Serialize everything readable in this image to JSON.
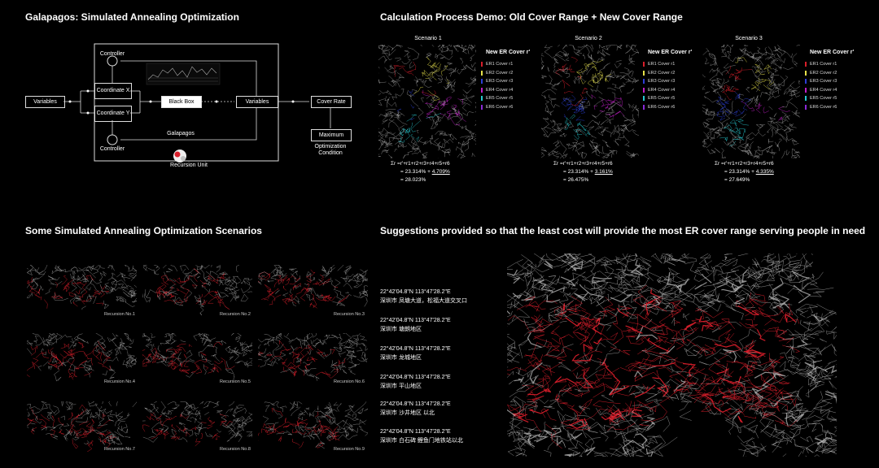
{
  "sections": {
    "galapagos_title": "Galapagos: Simulated Annealing Optimization",
    "calc_title": "Calculation Process Demo: Old Cover Range + New Cover Range",
    "scenarios_title": "Some Simulated Annealing Optimization Scenarios",
    "suggestions_title": "Suggestions provided so that the least cost will provide the most ER cover range serving people in need"
  },
  "diagram": {
    "variables_left": "Variables",
    "controller_top": "Controller",
    "coordinate_x": "Coordinate X",
    "coordinate_y": "Coordinate Y",
    "controller_bottom": "Controller",
    "black_box": "Black Box",
    "galapagos": "Galapagos",
    "variables_right": "Variables",
    "cover_rate": "Cover Rate",
    "maximum": "Maximum",
    "optimization_condition": "Optimization Condition",
    "recursion_unit": "Recursion Unit"
  },
  "scenarios": [
    {
      "title": "Scenario 1",
      "legend_title": "New ER Cover r'",
      "added": "4.709%",
      "total": "= 28.023%"
    },
    {
      "title": "Scenario 2",
      "legend_title": "New ER Cover r'",
      "added": "3.161%",
      "total": "= 26.475%"
    },
    {
      "title": "Scenario 3",
      "legend_title": "New ER Cover r'",
      "added": "4.335%",
      "total": "= 27.649%"
    }
  ],
  "legend_items": [
    "ER1 Cover r1",
    "ER2 Cover r2",
    "ER3 Cover r3",
    "ER4 Cover r4",
    "ER5 Cover r5",
    "ER6 Cover r6"
  ],
  "legend_colors": [
    "#d81e2a",
    "#e6e14a",
    "#2d3fd6",
    "#c21ec8",
    "#27c9d0",
    "#8a2ad8"
  ],
  "formula_sum": "Σr =r'+r1+r2+r3+r4+r5+r6",
  "formula_base": "= 23.314% +",
  "recursions": [
    "Recursion No.1",
    "Recursion No.2",
    "Recursion No.3",
    "Recursion No.4",
    "Recursion No.5",
    "Recursion No.6",
    "Recursion No.7",
    "Recursion No.8",
    "Recursion No.9"
  ],
  "suggestions": [
    {
      "coord": "22°42'04.8\"N   113°47'28.2\"E",
      "place": "深圳市 凤塘大道，松福大道交叉口"
    },
    {
      "coord": "22°42'04.8\"N   113°47'28.2\"E",
      "place": "深圳市 塘朗地区"
    },
    {
      "coord": "22°42'04.8\"N   113°47'28.2\"E",
      "place": "深圳市 龙城地区"
    },
    {
      "coord": "22°42'04.8\"N   113°47'28.2\"E",
      "place": "深圳市 平山地区"
    },
    {
      "coord": "22°42'04.8\"N   113°47'28.2\"E",
      "place": "深圳市 沙井地区 以北"
    },
    {
      "coord": "22°42'04.8\"N   113°47'28.2\"E",
      "place": "深圳市 白石碑 鲤鱼门地铁站以北"
    }
  ],
  "colors": {
    "background": "#000000",
    "accent": "#d81e2a",
    "line": "#dddddd"
  }
}
